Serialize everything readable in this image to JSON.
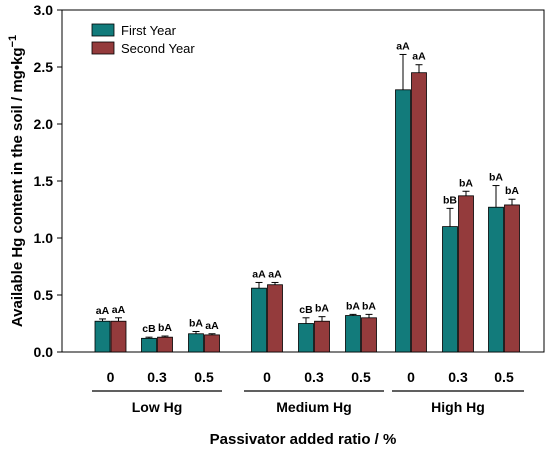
{
  "chart_data": {
    "type": "bar",
    "ylabel": "Available Hg content in the soil / mg•kg",
    "ylabel_superscript": "−1",
    "xlabel": "Passivator added ratio / %",
    "ylim": [
      0,
      3.0
    ],
    "yticks": [
      "0.0",
      "0.5",
      "1.0",
      "1.5",
      "2.0",
      "2.5",
      "3.0"
    ],
    "groups": [
      {
        "label": "Low Hg",
        "categories": [
          "0",
          "0.3",
          "0.5"
        ]
      },
      {
        "label": "Medium Hg",
        "categories": [
          "0",
          "0.3",
          "0.5"
        ]
      },
      {
        "label": "High Hg",
        "categories": [
          "0",
          "0.3",
          "0.5"
        ]
      }
    ],
    "series": [
      {
        "name": "First Year",
        "color": "#127b7b",
        "values": [
          0.27,
          0.12,
          0.16,
          0.56,
          0.25,
          0.32,
          2.3,
          1.1,
          1.27
        ],
        "errors": [
          0.02,
          0.01,
          0.02,
          0.05,
          0.05,
          0.01,
          0.31,
          0.16,
          0.19
        ],
        "sig_labels": [
          "aA",
          "cB",
          "bA",
          "aA",
          "cB",
          "bA",
          "aA",
          "bB",
          "bA"
        ]
      },
      {
        "name": "Second Year",
        "color": "#943b3c",
        "values": [
          0.27,
          0.13,
          0.15,
          0.59,
          0.27,
          0.3,
          2.45,
          1.37,
          1.29
        ],
        "errors": [
          0.03,
          0.01,
          0.01,
          0.02,
          0.04,
          0.03,
          0.07,
          0.04,
          0.05
        ],
        "sig_labels": [
          "aA",
          "bA",
          "aA",
          "aA",
          "bA",
          "bA",
          "aA",
          "bA",
          "bA"
        ]
      }
    ],
    "legend_position": "top-left"
  }
}
